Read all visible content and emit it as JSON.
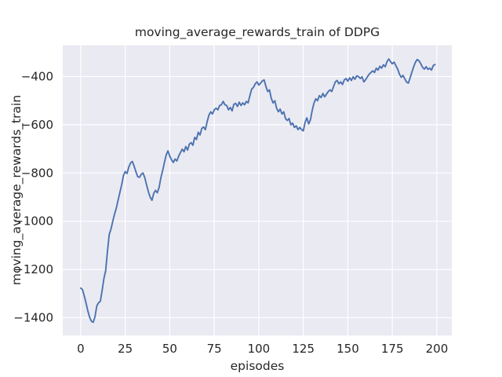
{
  "chart_data": {
    "type": "line",
    "title": "moving_average_rewards_train of DDPG",
    "xlabel": "episodes",
    "ylabel": "moving_average_rewards_train",
    "xlim": [
      -10.1,
      208.4
    ],
    "ylim": [
      -1474,
      -270
    ],
    "x_ticks": [
      0,
      25,
      50,
      75,
      100,
      125,
      150,
      175,
      200
    ],
    "y_ticks": [
      -1400,
      -1200,
      -1000,
      -800,
      -600,
      -400
    ],
    "grid": true,
    "legend_position": "none",
    "style": "seaborn-darkgrid",
    "colors": {
      "line": "#4c72b0",
      "plot_background": "#eaeaf2",
      "grid": "#ffffff",
      "text": "#262626",
      "figure_background": "#ffffff"
    },
    "series": [
      {
        "name": "moving_average_rewards_train",
        "x_start": 0,
        "x_step": 1,
        "y": [
          -1277,
          -1284,
          -1310,
          -1340,
          -1372,
          -1398,
          -1415,
          -1419,
          -1396,
          -1352,
          -1338,
          -1332,
          -1288,
          -1238,
          -1205,
          -1125,
          -1055,
          -1032,
          -1000,
          -970,
          -945,
          -912,
          -880,
          -848,
          -810,
          -794,
          -802,
          -775,
          -758,
          -752,
          -772,
          -795,
          -815,
          -818,
          -805,
          -800,
          -820,
          -850,
          -878,
          -900,
          -913,
          -884,
          -872,
          -882,
          -860,
          -820,
          -790,
          -756,
          -725,
          -708,
          -730,
          -745,
          -756,
          -742,
          -750,
          -730,
          -715,
          -701,
          -712,
          -690,
          -705,
          -680,
          -674,
          -685,
          -652,
          -661,
          -631,
          -642,
          -615,
          -609,
          -620,
          -587,
          -560,
          -546,
          -555,
          -538,
          -531,
          -538,
          -520,
          -517,
          -503,
          -517,
          -520,
          -538,
          -528,
          -542,
          -515,
          -511,
          -524,
          -506,
          -520,
          -509,
          -517,
          -503,
          -509,
          -479,
          -452,
          -445,
          -430,
          -422,
          -435,
          -427,
          -418,
          -414,
          -441,
          -462,
          -455,
          -490,
          -509,
          -500,
          -531,
          -546,
          -535,
          -555,
          -546,
          -574,
          -582,
          -574,
          -600,
          -593,
          -611,
          -604,
          -620,
          -611,
          -620,
          -625,
          -590,
          -571,
          -596,
          -580,
          -540,
          -510,
          -492,
          -500,
          -479,
          -487,
          -470,
          -484,
          -473,
          -462,
          -455,
          -462,
          -441,
          -422,
          -416,
          -430,
          -422,
          -433,
          -414,
          -408,
          -419,
          -405,
          -416,
          -401,
          -411,
          -397,
          -400,
          -408,
          -401,
          -422,
          -413,
          -401,
          -390,
          -383,
          -376,
          -383,
          -365,
          -373,
          -357,
          -365,
          -351,
          -359,
          -338,
          -327,
          -338,
          -347,
          -340,
          -355,
          -369,
          -390,
          -403,
          -395,
          -409,
          -423,
          -427,
          -405,
          -381,
          -359,
          -340,
          -329,
          -335,
          -347,
          -362,
          -369,
          -359,
          -370,
          -365,
          -373,
          -354,
          -350
        ]
      }
    ]
  }
}
